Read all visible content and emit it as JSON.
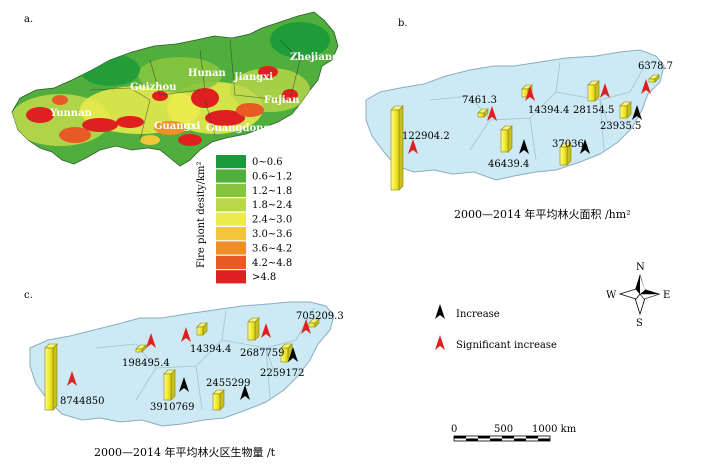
{
  "panels": {
    "a": {
      "label": "a.",
      "provinces": [
        "Yunnan",
        "Guizhou",
        "Hunan",
        "Jiangxi",
        "Zhejiang",
        "Fujian",
        "Guangxi",
        "Guangdong"
      ],
      "legend_title": "Fire piont desity/km²",
      "legend_classes": [
        "0~0.6",
        "0.6~1.2",
        "1.2~1.8",
        "1.8~2.4",
        "2.4~3.0",
        "3.0~3.6",
        "3.6~4.2",
        "4.2~4.8",
        ">4.8"
      ],
      "legend_colors": [
        "#1a9a3a",
        "#4fae3c",
        "#86c43f",
        "#b9d74a",
        "#ecec4e",
        "#f3c53b",
        "#ee8f2c",
        "#e85a26",
        "#e02020"
      ]
    },
    "b": {
      "label": "b.",
      "caption": "2000—2014 年平均林火面积 /hm²",
      "values": [
        "6378.7",
        "7461.3",
        "14394.4",
        "28154.5",
        "23935.5",
        "122904.2",
        "46439.4",
        "37036"
      ]
    },
    "c": {
      "label": "c.",
      "caption": "2000—2014 年平均林火区生物量 /t",
      "values": [
        "705209.3",
        "198495.4",
        "14394.4",
        "2687759",
        "2259172",
        "8744850",
        "3910769",
        "2455299"
      ]
    }
  },
  "legend": {
    "increase": "Increase",
    "significant_increase": "Significant increase",
    "increase_color": "#000000",
    "significant_color": "#e02020"
  },
  "compass": {
    "n": "N",
    "s": "S",
    "e": "E",
    "w": "W"
  },
  "scale_bar": {
    "ticks": [
      "0",
      "500",
      "1000 km"
    ]
  },
  "colors": {
    "map_fill": "#cce9f4",
    "map_border": "#8aaebf",
    "bar_face": "#f3ec2a",
    "bar_side": "#c9c01c"
  }
}
